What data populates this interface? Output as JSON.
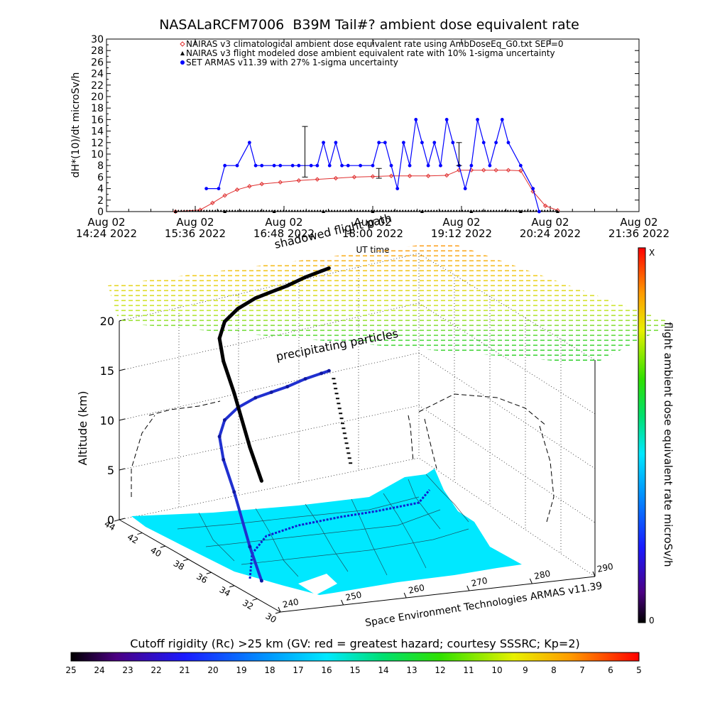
{
  "chart_data": [
    {
      "type": "line",
      "title": "NASALaRCFM7006  B39M Tail#? ambient dose equivalent rate",
      "ylabel": "dH*(10)/dt microSv/h",
      "xlabel": "UT time",
      "ylim": [
        0,
        30
      ],
      "yticks": [
        "0",
        "2",
        "4",
        "6",
        "8",
        "10",
        "12",
        "14",
        "16",
        "18",
        "20",
        "22",
        "24",
        "26",
        "28",
        "30"
      ],
      "xticks": [
        {
          "date": "Aug 02",
          "time": "14:24 2022"
        },
        {
          "date": "Aug 02",
          "time": "15:36 2022"
        },
        {
          "date": "Aug 02",
          "time": "16:48 2022"
        },
        {
          "date": "Aug 02",
          "time": "18:00 2022"
        },
        {
          "date": "Aug 02",
          "time": "19:12 2022"
        },
        {
          "date": "Aug 02",
          "time": "20:24 2022"
        },
        {
          "date": "Aug 02",
          "time": "21:36 2022"
        }
      ],
      "legend_position": "top",
      "series": [
        {
          "name": "NAIRAS v3 climatological ambient dose equivalent rate using AmbDoseEq_G0.txt SEP=0",
          "color": "#e03030",
          "marker": "diamond",
          "x": [
            "15:20",
            "15:40",
            "15:50",
            "16:00",
            "16:10",
            "16:20",
            "16:30",
            "16:45",
            "17:00",
            "17:15",
            "17:30",
            "17:45",
            "18:00",
            "18:15",
            "18:30",
            "18:45",
            "19:00",
            "19:10",
            "19:20",
            "19:30",
            "19:40",
            "19:50",
            "20:00",
            "20:10",
            "20:20",
            "20:30"
          ],
          "y": [
            0,
            0.3,
            1.5,
            2.8,
            3.8,
            4.4,
            4.8,
            5.1,
            5.4,
            5.6,
            5.8,
            6.0,
            6.1,
            6.2,
            6.2,
            6.2,
            6.3,
            7.2,
            7.2,
            7.2,
            7.2,
            7.2,
            7.1,
            3.5,
            1.0,
            0.2
          ]
        },
        {
          "name": "NAIRAS v3 flight modeled dose ambient equivalent rate with 10% 1-sigma uncertainty",
          "color": "#000000",
          "marker": "triangle",
          "x": [
            "15:20",
            "16:00",
            "16:40",
            "17:20",
            "18:00",
            "18:40",
            "19:20",
            "20:00",
            "20:30"
          ],
          "y": [
            0,
            0,
            0,
            0,
            0,
            0,
            0,
            0,
            0
          ]
        },
        {
          "name": "SET ARMAS v11.39 with 27% 1-sigma uncertainty",
          "color": "#0000ff",
          "marker": "circle",
          "x": [
            "15:45",
            "15:55",
            "16:00",
            "16:10",
            "16:20",
            "16:25",
            "16:30",
            "16:40",
            "16:45",
            "16:55",
            "17:00",
            "17:10",
            "17:15",
            "17:20",
            "17:25",
            "17:30",
            "17:35",
            "17:40",
            "17:50",
            "18:00",
            "18:05",
            "18:10",
            "18:15",
            "18:20",
            "18:25",
            "18:30",
            "18:35",
            "18:40",
            "18:45",
            "18:50",
            "18:55",
            "19:00",
            "19:05",
            "19:10",
            "19:15",
            "19:20",
            "19:25",
            "19:30",
            "19:35",
            "19:40",
            "19:45",
            "19:50",
            "20:00",
            "20:10",
            "20:15"
          ],
          "y": [
            4,
            4,
            8,
            8,
            12,
            8,
            8,
            8,
            8,
            8,
            8,
            8,
            8,
            12,
            8,
            12,
            8,
            8,
            8,
            8,
            12,
            12,
            8,
            4,
            12,
            8,
            16,
            12,
            8,
            12,
            8,
            16,
            12,
            8,
            4,
            8,
            16,
            12,
            8,
            12,
            16,
            12,
            8,
            4,
            0
          ]
        }
      ]
    },
    {
      "type": "scatter",
      "title": "shadowed flight path",
      "subtitle": "precipitating particles",
      "zlabel": "Altitude (km)",
      "zlim": [
        0,
        20
      ],
      "zticks": [
        "0",
        "5",
        "10",
        "15",
        "20"
      ],
      "lat_ticks": [
        "44",
        "42",
        "40",
        "38",
        "36",
        "34",
        "32",
        "30"
      ],
      "lon_ticks": [
        "240",
        "250",
        "260",
        "270",
        "280",
        "290"
      ],
      "lon_label": "Space Environment Technologies ARMAS v11.39",
      "colorbar_label": "flight ambient dose equivalent rate microSv/h",
      "colorbar_ticks": [
        "X",
        "0"
      ],
      "map_color": "#00e8ff",
      "flight_path": {
        "lon": [
          244.0,
          244.1,
          244.3,
          245.0,
          246.5,
          249.0,
          252.5,
          256.0,
          259.0,
          262.0,
          265.5,
          268.5,
          270.0
        ],
        "lat": [
          33.4,
          34.5,
          36.0,
          37.3,
          38.4,
          39.2,
          39.8,
          40.0,
          40.1,
          40.2,
          40.4,
          40.5,
          40.6
        ],
        "alt_km": [
          0.3,
          3.0,
          7.5,
          9.8,
          11.2,
          12.0,
          12.4,
          12.8,
          12.9,
          13.0,
          13.2,
          13.3,
          13.3
        ]
      }
    },
    {
      "type": "heatmap",
      "title": "Cutoff rigidity (Rc) >25 km (GV: red = greatest hazard; courtesy SSSRC; Kp=2)",
      "ticks": [
        "25",
        "24",
        "23",
        "22",
        "21",
        "20",
        "19",
        "18",
        "17",
        "16",
        "15",
        "14",
        "13",
        "12",
        "11",
        "10",
        "9",
        "8",
        "7",
        "6",
        "5"
      ]
    }
  ]
}
